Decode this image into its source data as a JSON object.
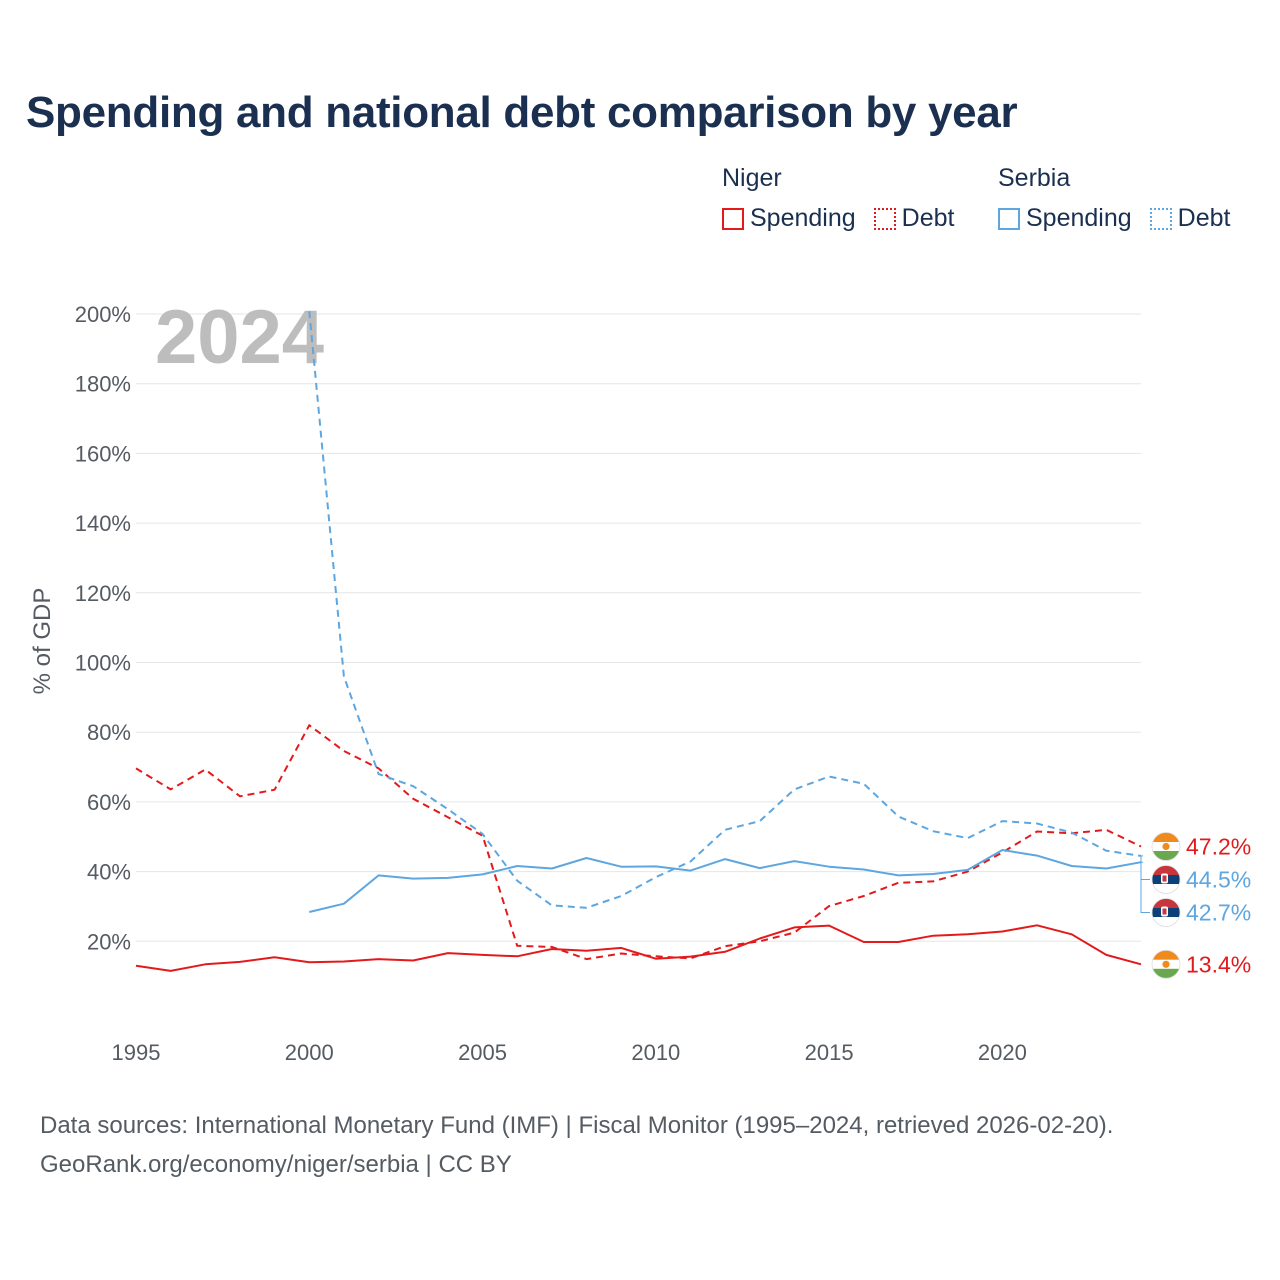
{
  "title": "Spending and national debt comparison by year",
  "legend": {
    "groups": [
      {
        "country": "Niger",
        "items": [
          {
            "label": "Spending",
            "style": "solid"
          },
          {
            "label": "Debt",
            "style": "dotted"
          }
        ],
        "color": "#e31a1c"
      },
      {
        "country": "Serbia",
        "items": [
          {
            "label": "Spending",
            "style": "solid"
          },
          {
            "label": "Debt",
            "style": "dotted"
          }
        ],
        "color": "#5ea6e0"
      }
    ]
  },
  "footer": {
    "line1": "Data sources: International Monetary Fund (IMF) | Fiscal Monitor (1995–2024, retrieved 2026-02-20).",
    "line2": "GeoRank.org/economy/niger/serbia | CC BY"
  },
  "chart_data": {
    "type": "line",
    "year_label": "2024",
    "ylabel": "% of GDP",
    "xlim": [
      1995,
      2024
    ],
    "ylim": [
      0,
      200
    ],
    "x_ticks": [
      1995,
      2000,
      2005,
      2010,
      2015,
      2020
    ],
    "x_tick_labels": [
      "1995",
      "2000",
      "2005",
      "2010",
      "2015",
      "2020"
    ],
    "y_ticks": [
      20,
      40,
      60,
      80,
      100,
      120,
      140,
      160,
      180,
      200
    ],
    "y_tick_labels": [
      "20%",
      "40%",
      "60%",
      "80%",
      "100%",
      "120%",
      "140%",
      "160%",
      "180%",
      "200%"
    ],
    "series": [
      {
        "name": "Niger Spending",
        "country": "Niger",
        "color": "#e31a1c",
        "dash": false,
        "start": 1995,
        "values": [
          13.0,
          11.5,
          13.4,
          14.1,
          15.4,
          14.0,
          14.2,
          14.9,
          14.5,
          16.6,
          16.1,
          15.7,
          17.8,
          17.3,
          18.1,
          15.0,
          15.6,
          17.0,
          20.8,
          24.0,
          24.5,
          19.8,
          19.8,
          21.6,
          22.0,
          22.8,
          24.6,
          22.0,
          16.1,
          13.4
        ],
        "end_label": "13.4%"
      },
      {
        "name": "Niger Debt",
        "country": "Niger",
        "color": "#e31a1c",
        "dash": true,
        "start": 1995,
        "values": [
          69.6,
          63.6,
          69.3,
          61.6,
          63.5,
          82.0,
          74.6,
          69.6,
          60.9,
          55.6,
          50.3,
          18.7,
          18.4,
          14.9,
          16.5,
          15.7,
          15.1,
          18.6,
          20.0,
          22.5,
          30.1,
          33.0,
          36.8,
          37.2,
          40.0,
          45.5,
          51.5,
          51.0,
          52.0,
          47.2
        ],
        "end_label": "47.2%"
      },
      {
        "name": "Serbia Spending",
        "country": "Serbia",
        "color": "#5ea6e0",
        "dash": false,
        "start": 2000,
        "values": [
          28.4,
          30.8,
          38.9,
          38.0,
          38.2,
          39.2,
          41.6,
          40.9,
          43.9,
          41.4,
          41.5,
          40.3,
          43.6,
          41.0,
          43.0,
          41.4,
          40.6,
          38.9,
          39.3,
          40.5,
          46.2,
          44.6,
          41.6,
          40.9,
          42.7
        ],
        "end_label": "42.7%"
      },
      {
        "name": "Serbia Debt",
        "country": "Serbia",
        "color": "#5ea6e0",
        "dash": true,
        "start": 2000,
        "values": [
          200.8,
          96.0,
          68.0,
          64.5,
          57.9,
          50.8,
          37.4,
          30.3,
          29.6,
          33.0,
          38.4,
          42.9,
          52.0,
          54.5,
          63.6,
          67.3,
          65.2,
          55.8,
          51.6,
          49.6,
          54.5,
          53.8,
          51.2,
          46.0,
          44.5
        ],
        "end_label": "44.5%"
      }
    ]
  }
}
